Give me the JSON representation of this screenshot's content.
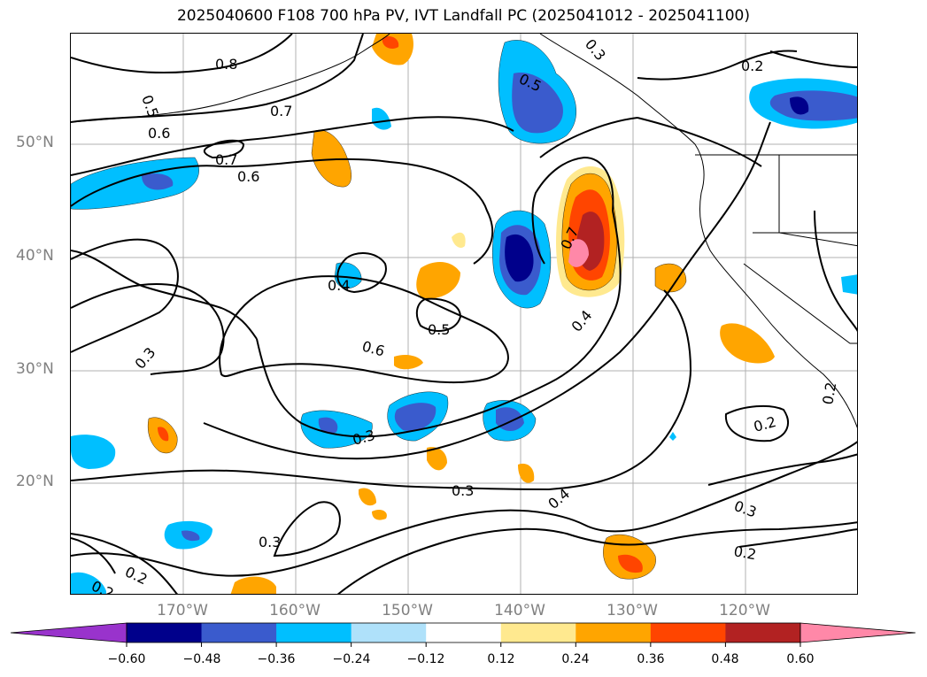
{
  "title": "2025040600 F108 700 hPa PV, IVT Landfall PC (2025041012 - 2025041100)",
  "axes": {
    "lat_labels": [
      "50°N",
      "40°N",
      "30°N",
      "20°N"
    ],
    "lon_labels": [
      "170°W",
      "160°W",
      "150°W",
      "140°W",
      "130°W",
      "120°W"
    ]
  },
  "contour_labels": [
    "0.8",
    "0.7",
    "0.6",
    "0.5",
    "0.7",
    "0.6",
    "0.5",
    "0.3",
    "0.4",
    "0.6",
    "0.5",
    "0.3",
    "0.3",
    "0.3",
    "0.2",
    "0.2",
    "0.3",
    "0.4",
    "0.7",
    "0.4",
    "0.2",
    "0.3",
    "0.2",
    "0.2",
    "0.2"
  ],
  "colorbar": {
    "tick_labels": [
      "−0.60",
      "−0.48",
      "−0.36",
      "−0.24",
      "−0.12",
      "0.12",
      "0.24",
      "0.36",
      "0.48",
      "0.60"
    ],
    "colors": [
      "#9933cc",
      "#00008b",
      "#3a5bcd",
      "#00bfff",
      "#afe1fa",
      "#ffffff",
      "#ffe98f",
      "#ffa500",
      "#ff4500",
      "#b22222",
      "#ff88a8"
    ]
  }
}
